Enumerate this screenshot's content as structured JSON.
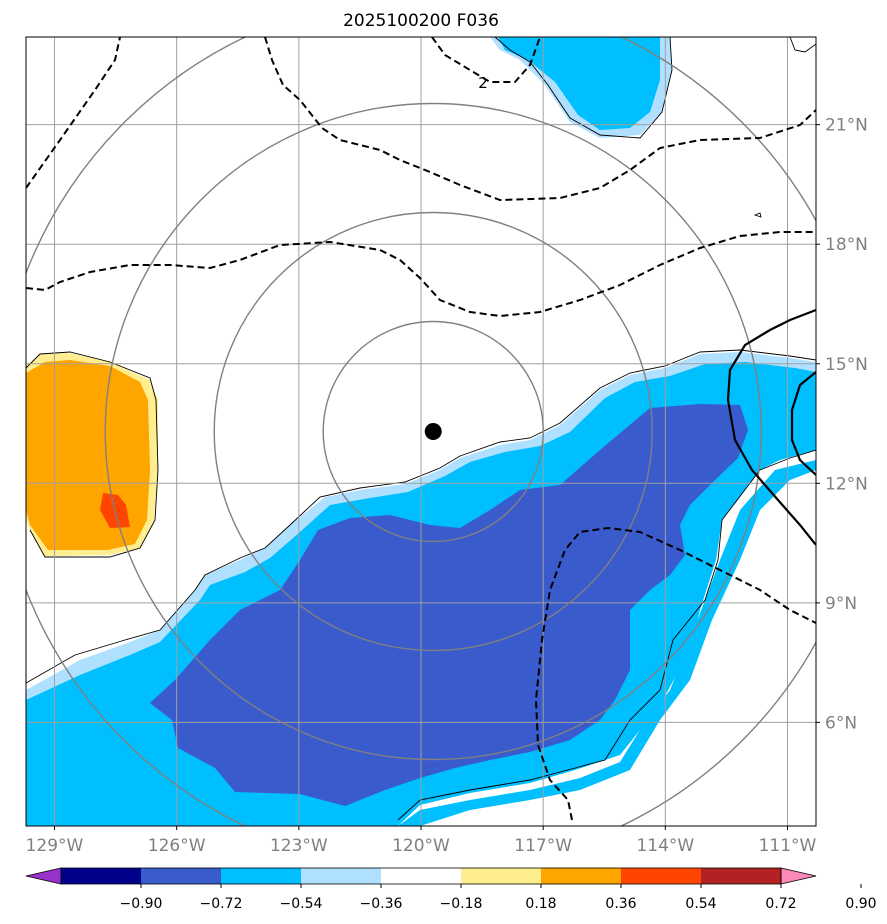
{
  "chart_data": {
    "type": "map",
    "title": "2025100200 F036",
    "lon_range": [
      -129.7,
      -110.3
    ],
    "lat_range": [
      3.4,
      23.2
    ],
    "lon_ticks": [
      -129,
      -126,
      -123,
      -120,
      -117,
      -114,
      -111
    ],
    "lon_tick_labels": [
      "129°W",
      "126°W",
      "123°W",
      "120°W",
      "117°W",
      "114°W",
      "111°W"
    ],
    "lat_ticks": [
      6,
      9,
      12,
      15,
      18,
      21
    ],
    "lat_tick_labels": [
      "6°N",
      "9°N",
      "12°N",
      "15°N",
      "18°N",
      "21°N"
    ],
    "storm_center": {
      "lon": -119.7,
      "lat": 13.3
    },
    "range_rings": 4,
    "contour_label": "2",
    "colorbar": {
      "levels": [
        "−0.90",
        "−0.72",
        "−0.54",
        "−0.36",
        "−0.18",
        "0.18",
        "0.36",
        "0.54",
        "0.72",
        "0.90"
      ],
      "colors": [
        "#9932cc",
        "#00008b",
        "#3a5bcc",
        "#00bfff",
        "#b0e0ff",
        "#ffffff",
        "#ffee90",
        "#ffa500",
        "#ff4500",
        "#b22222",
        "#ff88bb"
      ]
    }
  }
}
